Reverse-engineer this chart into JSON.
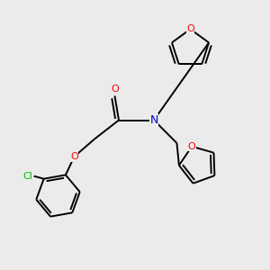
{
  "bg_color": "#ebebeb",
  "atom_colors": {
    "C": "#000000",
    "N": "#0000cc",
    "O": "#ff0000",
    "Cl": "#00bb00"
  },
  "line_color": "#000000",
  "line_width": 1.4,
  "figsize": [
    3.0,
    3.0
  ],
  "dpi": 100,
  "xlim": [
    0,
    10
  ],
  "ylim": [
    0,
    10
  ]
}
